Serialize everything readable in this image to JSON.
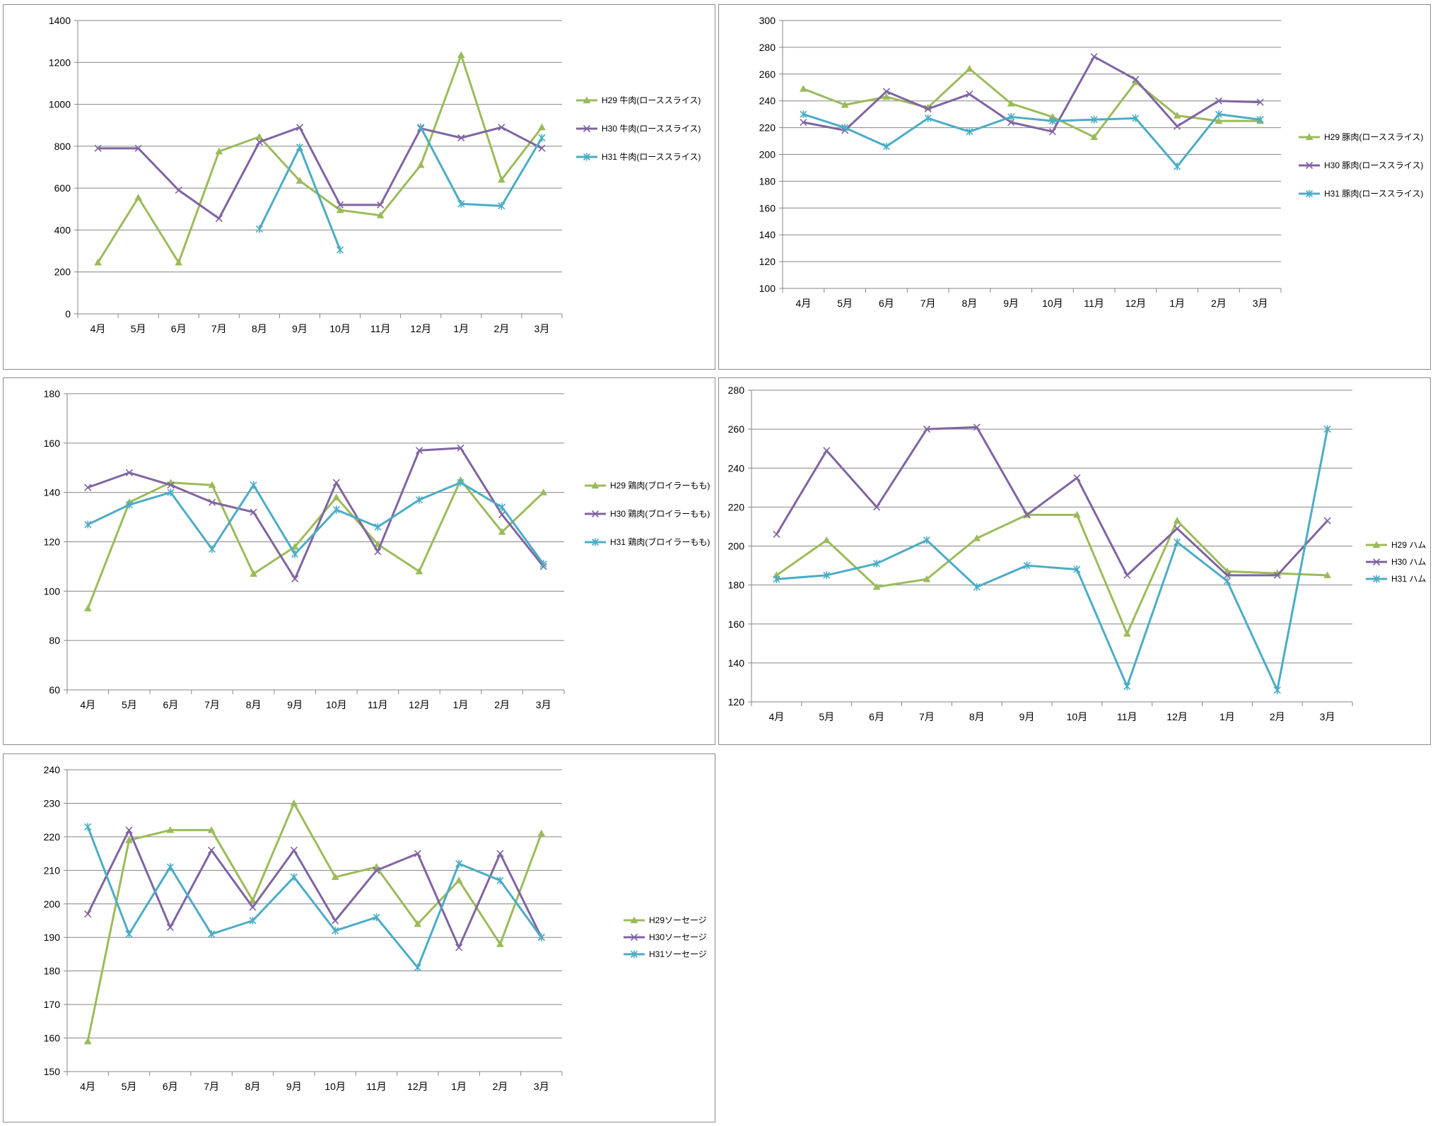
{
  "colors": {
    "H29": "#9bbb59",
    "H30": "#8064a2",
    "H31": "#4bacc6",
    "grid": "#868686",
    "axis": "#868686"
  },
  "chart_data": [
    {
      "type": "line",
      "categories": [
        "4月",
        "5月",
        "6月",
        "7月",
        "8月",
        "9月",
        "10月",
        "11月",
        "12月",
        "1月",
        "2月",
        "3月"
      ],
      "ylim": [
        0,
        1400
      ],
      "ystep": 200,
      "legend": "right",
      "series": [
        {
          "name": "H29 牛肉(ローススライス)",
          "marker": "triangle",
          "values": [
            245,
            555,
            245,
            775,
            845,
            635,
            495,
            470,
            710,
            1235,
            640,
            890
          ]
        },
        {
          "name": "H30 牛肉(ローススライス)",
          "marker": "x",
          "values": [
            790,
            790,
            590,
            455,
            820,
            890,
            520,
            520,
            885,
            840,
            890,
            790
          ]
        },
        {
          "name": "H31 牛肉(ローススライス)",
          "marker": "star",
          "values": [
            null,
            null,
            null,
            null,
            405,
            795,
            305,
            null,
            890,
            525,
            515,
            840
          ]
        }
      ]
    },
    {
      "type": "line",
      "categories": [
        "4月",
        "5月",
        "6月",
        "7月",
        "8月",
        "9月",
        "10月",
        "11月",
        "12月",
        "1月",
        "2月",
        "3月"
      ],
      "ylim": [
        100,
        300
      ],
      "ystep": 20,
      "legend": "right",
      "series": [
        {
          "name": "H29 豚肉(ローススライス)",
          "marker": "triangle",
          "values": [
            249,
            237,
            243,
            235,
            264,
            238,
            228,
            213,
            254,
            229,
            225,
            225
          ]
        },
        {
          "name": "H30 豚肉(ローススライス)",
          "marker": "x",
          "values": [
            224,
            218,
            247,
            234,
            245,
            224,
            217,
            273,
            256,
            221,
            240,
            239
          ]
        },
        {
          "name": "H31 豚肉(ローススライス)",
          "marker": "star",
          "values": [
            230,
            220,
            206,
            227,
            217,
            228,
            225,
            226,
            227,
            191,
            230,
            226
          ]
        }
      ]
    },
    {
      "type": "line",
      "categories": [
        "4月",
        "5月",
        "6月",
        "7月",
        "8月",
        "9月",
        "10月",
        "11月",
        "12月",
        "1月",
        "2月",
        "3月"
      ],
      "ylim": [
        60,
        180
      ],
      "ystep": 20,
      "legend": "right",
      "series": [
        {
          "name": "H29 鶏肉(ブロイラーもも)",
          "marker": "triangle",
          "values": [
            93,
            136,
            144,
            143,
            107,
            118,
            138,
            119,
            108,
            145,
            124,
            140
          ]
        },
        {
          "name": "H30 鶏肉(ブロイラーもも)",
          "marker": "x",
          "values": [
            142,
            148,
            143,
            136,
            132,
            105,
            144,
            116,
            157,
            158,
            131,
            110
          ]
        },
        {
          "name": "H31 鶏肉(ブロイラーもも)",
          "marker": "star",
          "values": [
            127,
            135,
            140,
            117,
            143,
            115,
            133,
            126,
            137,
            144,
            134,
            111
          ]
        }
      ]
    },
    {
      "type": "line",
      "categories": [
        "4月",
        "5月",
        "6月",
        "7月",
        "8月",
        "9月",
        "10月",
        "11月",
        "12月",
        "1月",
        "2月",
        "3月"
      ],
      "ylim": [
        120,
        280
      ],
      "ystep": 20,
      "legend": "right",
      "series": [
        {
          "name": "H29 ハム",
          "marker": "triangle",
          "values": [
            185,
            203,
            179,
            183,
            204,
            216,
            216,
            155,
            213,
            187,
            186,
            185
          ]
        },
        {
          "name": "H30 ハム",
          "marker": "x",
          "values": [
            206,
            249,
            220,
            260,
            261,
            216,
            235,
            185,
            209,
            185,
            185,
            213
          ]
        },
        {
          "name": "H31 ハム",
          "marker": "star",
          "values": [
            183,
            185,
            191,
            203,
            179,
            190,
            188,
            128,
            202,
            182,
            126,
            260
          ]
        }
      ]
    },
    {
      "type": "line",
      "categories": [
        "4月",
        "5月",
        "6月",
        "7月",
        "8月",
        "9月",
        "10月",
        "11月",
        "12月",
        "1月",
        "2月",
        "3月"
      ],
      "ylim": [
        150,
        240
      ],
      "ystep": 10,
      "legend": "right",
      "series": [
        {
          "name": "H29ソーセージ",
          "marker": "triangle",
          "values": [
            159,
            219,
            222,
            222,
            201,
            230,
            208,
            211,
            194,
            207,
            188,
            221
          ]
        },
        {
          "name": "H30ソーセージ",
          "marker": "x",
          "values": [
            197,
            222,
            193,
            216,
            199,
            216,
            195,
            210,
            215,
            187,
            215,
            190
          ]
        },
        {
          "name": "H31ソーセージ",
          "marker": "star",
          "values": [
            223,
            191,
            211,
            191,
            195,
            208,
            192,
            196,
            181,
            212,
            207,
            190
          ]
        }
      ]
    }
  ]
}
